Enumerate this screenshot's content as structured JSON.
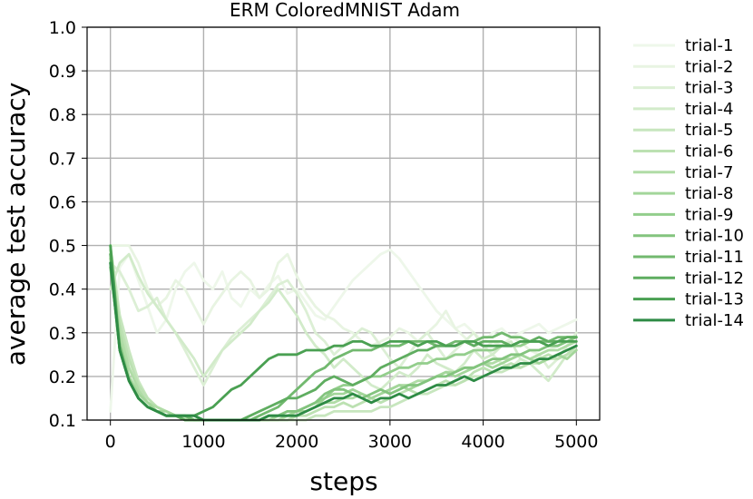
{
  "chart_data": {
    "type": "line",
    "title": "ERM ColoredMNIST Adam",
    "xlabel": "steps",
    "ylabel": "average test accuracy",
    "xlim": [
      -250,
      5250
    ],
    "ylim": [
      0.1,
      1.0
    ],
    "xticks": [
      0,
      1000,
      2000,
      3000,
      4000,
      5000
    ],
    "xtick_labels": [
      "0",
      "1000",
      "2000",
      "3000",
      "4000",
      "5000"
    ],
    "yticks": [
      0.1,
      0.2,
      0.3,
      0.4,
      0.5,
      0.6,
      0.7,
      0.8,
      0.9,
      1.0
    ],
    "ytick_labels": [
      "0.1",
      "0.2",
      "0.3",
      "0.4",
      "0.5",
      "0.6",
      "0.7",
      "0.8",
      "0.9",
      "1.0"
    ],
    "grid": true,
    "legend_position": "outside-right",
    "x": [
      0,
      100,
      200,
      300,
      400,
      500,
      600,
      700,
      800,
      900,
      1000,
      1100,
      1200,
      1300,
      1400,
      1500,
      1600,
      1700,
      1800,
      1900,
      2000,
      2100,
      2200,
      2300,
      2400,
      2500,
      2600,
      2700,
      2800,
      2900,
      3000,
      3100,
      3200,
      3300,
      3400,
      3500,
      3600,
      3700,
      3800,
      3900,
      4000,
      4100,
      4200,
      4300,
      4400,
      4500,
      4600,
      4700,
      4800,
      4900,
      5000
    ],
    "series": [
      {
        "name": "trial-1",
        "color": "#eef7ea",
        "opacity": 1.0,
        "values": [
          0.12,
          0.45,
          0.48,
          0.42,
          0.36,
          0.3,
          0.33,
          0.4,
          0.44,
          0.46,
          0.42,
          0.4,
          0.44,
          0.38,
          0.36,
          0.4,
          0.38,
          0.41,
          0.43,
          0.39,
          0.4,
          0.37,
          0.34,
          0.33,
          0.36,
          0.39,
          0.42,
          0.44,
          0.46,
          0.48,
          0.49,
          0.47,
          0.44,
          0.41,
          0.38,
          0.35,
          0.33,
          0.31,
          0.32,
          0.3,
          0.28,
          0.3,
          0.31,
          0.29,
          0.3,
          0.31,
          0.32,
          0.3,
          0.31,
          0.32,
          0.33
        ]
      },
      {
        "name": "trial-2",
        "color": "#e8f4e2",
        "opacity": 1.0,
        "values": [
          0.5,
          0.5,
          0.5,
          0.46,
          0.4,
          0.36,
          0.38,
          0.42,
          0.4,
          0.36,
          0.32,
          0.36,
          0.39,
          0.42,
          0.44,
          0.42,
          0.38,
          0.4,
          0.46,
          0.48,
          0.43,
          0.39,
          0.36,
          0.34,
          0.33,
          0.31,
          0.3,
          0.28,
          0.27,
          0.28,
          0.29,
          0.31,
          0.3,
          0.28,
          0.3,
          0.32,
          0.35,
          0.31,
          0.29,
          0.27,
          0.26,
          0.28,
          0.27,
          0.29,
          0.28,
          0.26,
          0.25,
          0.26,
          0.27,
          0.28,
          0.29
        ]
      },
      {
        "name": "trial-3",
        "color": "#dcefd5",
        "opacity": 1.0,
        "values": [
          0.46,
          0.44,
          0.4,
          0.35,
          0.36,
          0.38,
          0.33,
          0.3,
          0.26,
          0.22,
          0.18,
          0.22,
          0.26,
          0.29,
          0.31,
          0.33,
          0.35,
          0.38,
          0.41,
          0.42,
          0.39,
          0.35,
          0.3,
          0.28,
          0.25,
          0.27,
          0.29,
          0.31,
          0.3,
          0.27,
          0.24,
          0.22,
          0.25,
          0.28,
          0.3,
          0.27,
          0.24,
          0.26,
          0.28,
          0.3,
          0.27,
          0.25,
          0.23,
          0.22,
          0.24,
          0.23,
          0.25,
          0.22,
          0.24,
          0.27,
          0.3
        ]
      },
      {
        "name": "trial-4",
        "color": "#d2ebca",
        "opacity": 1.0,
        "values": [
          0.4,
          0.46,
          0.48,
          0.43,
          0.39,
          0.36,
          0.33,
          0.3,
          0.27,
          0.24,
          0.2,
          0.23,
          0.26,
          0.28,
          0.3,
          0.32,
          0.35,
          0.37,
          0.4,
          0.37,
          0.34,
          0.3,
          0.27,
          0.25,
          0.22,
          0.24,
          0.22,
          0.2,
          0.18,
          0.17,
          0.19,
          0.21,
          0.2,
          0.22,
          0.25,
          0.23,
          0.22,
          0.21,
          0.23,
          0.26,
          0.24,
          0.25,
          0.27,
          0.28,
          0.24,
          0.23,
          0.21,
          0.19,
          0.22,
          0.25,
          0.27
        ]
      },
      {
        "name": "trial-5",
        "color": "#c7e6be",
        "opacity": 1.0,
        "values": [
          0.5,
          0.34,
          0.26,
          0.19,
          0.15,
          0.13,
          0.12,
          0.11,
          0.105,
          0.1,
          0.1,
          0.1,
          0.1,
          0.1,
          0.1,
          0.1,
          0.1,
          0.1,
          0.1,
          0.1,
          0.1,
          0.1,
          0.11,
          0.11,
          0.12,
          0.12,
          0.12,
          0.12,
          0.12,
          0.13,
          0.13,
          0.14,
          0.15,
          0.16,
          0.16,
          0.17,
          0.18,
          0.18,
          0.19,
          0.2,
          0.2,
          0.21,
          0.21,
          0.22,
          0.22,
          0.23,
          0.23,
          0.24,
          0.24,
          0.25,
          0.26
        ]
      },
      {
        "name": "trial-6",
        "color": "#bce1b2",
        "opacity": 1.0,
        "values": [
          0.48,
          0.32,
          0.24,
          0.18,
          0.15,
          0.13,
          0.12,
          0.11,
          0.11,
          0.1,
          0.1,
          0.1,
          0.1,
          0.1,
          0.1,
          0.1,
          0.1,
          0.1,
          0.1,
          0.1,
          0.11,
          0.11,
          0.12,
          0.13,
          0.13,
          0.14,
          0.13,
          0.14,
          0.15,
          0.14,
          0.15,
          0.16,
          0.17,
          0.16,
          0.17,
          0.18,
          0.19,
          0.18,
          0.19,
          0.21,
          0.22,
          0.21,
          0.22,
          0.23,
          0.22,
          0.23,
          0.24,
          0.25,
          0.24,
          0.25,
          0.27
        ]
      },
      {
        "name": "trial-7",
        "color": "#b0dca6",
        "opacity": 1.0,
        "values": [
          0.49,
          0.3,
          0.22,
          0.17,
          0.14,
          0.13,
          0.12,
          0.11,
          0.11,
          0.11,
          0.1,
          0.1,
          0.1,
          0.1,
          0.1,
          0.1,
          0.1,
          0.1,
          0.1,
          0.11,
          0.11,
          0.12,
          0.13,
          0.14,
          0.14,
          0.15,
          0.15,
          0.16,
          0.15,
          0.16,
          0.17,
          0.18,
          0.18,
          0.19,
          0.19,
          0.2,
          0.21,
          0.21,
          0.22,
          0.22,
          0.23,
          0.23,
          0.24,
          0.24,
          0.25,
          0.24,
          0.25,
          0.26,
          0.26,
          0.27,
          0.28
        ]
      },
      {
        "name": "trial-8",
        "color": "#a3d69a",
        "opacity": 1.0,
        "values": [
          0.47,
          0.28,
          0.2,
          0.16,
          0.14,
          0.12,
          0.12,
          0.11,
          0.11,
          0.1,
          0.1,
          0.1,
          0.1,
          0.1,
          0.1,
          0.1,
          0.1,
          0.1,
          0.11,
          0.11,
          0.12,
          0.12,
          0.13,
          0.15,
          0.16,
          0.16,
          0.17,
          0.16,
          0.15,
          0.16,
          0.17,
          0.18,
          0.17,
          0.18,
          0.19,
          0.2,
          0.21,
          0.2,
          0.21,
          0.22,
          0.23,
          0.22,
          0.23,
          0.24,
          0.25,
          0.24,
          0.23,
          0.24,
          0.25,
          0.24,
          0.26
        ]
      },
      {
        "name": "trial-9",
        "color": "#93ce8c",
        "opacity": 1.0,
        "values": [
          0.5,
          0.27,
          0.19,
          0.15,
          0.13,
          0.12,
          0.11,
          0.11,
          0.11,
          0.1,
          0.1,
          0.1,
          0.1,
          0.1,
          0.1,
          0.1,
          0.1,
          0.11,
          0.11,
          0.12,
          0.12,
          0.13,
          0.14,
          0.15,
          0.17,
          0.18,
          0.18,
          0.19,
          0.2,
          0.2,
          0.21,
          0.22,
          0.22,
          0.23,
          0.23,
          0.24,
          0.24,
          0.25,
          0.25,
          0.26,
          0.26,
          0.26,
          0.27,
          0.27,
          0.27,
          0.28,
          0.28,
          0.28,
          0.28,
          0.29,
          0.29
        ]
      },
      {
        "name": "trial-10",
        "color": "#83c47e",
        "opacity": 1.0,
        "values": [
          0.46,
          0.26,
          0.19,
          0.15,
          0.13,
          0.12,
          0.11,
          0.11,
          0.1,
          0.1,
          0.1,
          0.1,
          0.1,
          0.1,
          0.1,
          0.1,
          0.1,
          0.11,
          0.11,
          0.12,
          0.12,
          0.13,
          0.14,
          0.16,
          0.17,
          0.17,
          0.16,
          0.15,
          0.16,
          0.17,
          0.16,
          0.17,
          0.18,
          0.18,
          0.19,
          0.2,
          0.2,
          0.21,
          0.22,
          0.22,
          0.23,
          0.24,
          0.24,
          0.25,
          0.25,
          0.26,
          0.26,
          0.27,
          0.27,
          0.28,
          0.29
        ]
      },
      {
        "name": "trial-11",
        "color": "#72b96f",
        "opacity": 1.0,
        "values": [
          0.45,
          0.27,
          0.19,
          0.15,
          0.13,
          0.12,
          0.11,
          0.11,
          0.11,
          0.1,
          0.1,
          0.1,
          0.1,
          0.1,
          0.1,
          0.1,
          0.11,
          0.12,
          0.13,
          0.15,
          0.17,
          0.19,
          0.21,
          0.22,
          0.24,
          0.25,
          0.26,
          0.26,
          0.26,
          0.27,
          0.27,
          0.27,
          0.28,
          0.28,
          0.28,
          0.27,
          0.27,
          0.28,
          0.28,
          0.28,
          0.29,
          0.29,
          0.3,
          0.29,
          0.29,
          0.28,
          0.28,
          0.28,
          0.29,
          0.29,
          0.29
        ]
      },
      {
        "name": "trial-12",
        "color": "#5fad60",
        "opacity": 1.0,
        "values": [
          0.48,
          0.26,
          0.19,
          0.15,
          0.13,
          0.12,
          0.11,
          0.11,
          0.1,
          0.1,
          0.1,
          0.1,
          0.1,
          0.1,
          0.1,
          0.11,
          0.12,
          0.13,
          0.14,
          0.15,
          0.15,
          0.16,
          0.17,
          0.19,
          0.2,
          0.19,
          0.18,
          0.19,
          0.2,
          0.22,
          0.23,
          0.24,
          0.25,
          0.26,
          0.26,
          0.27,
          0.27,
          0.27,
          0.28,
          0.27,
          0.28,
          0.28,
          0.28,
          0.27,
          0.28,
          0.28,
          0.29,
          0.28,
          0.28,
          0.29,
          0.29
        ]
      },
      {
        "name": "trial-13",
        "color": "#4aa052",
        "opacity": 1.0,
        "values": [
          0.5,
          0.26,
          0.19,
          0.15,
          0.13,
          0.12,
          0.11,
          0.11,
          0.11,
          0.11,
          0.12,
          0.13,
          0.15,
          0.17,
          0.18,
          0.2,
          0.22,
          0.24,
          0.25,
          0.25,
          0.25,
          0.26,
          0.26,
          0.26,
          0.27,
          0.27,
          0.28,
          0.28,
          0.27,
          0.27,
          0.28,
          0.28,
          0.28,
          0.27,
          0.28,
          0.28,
          0.27,
          0.27,
          0.28,
          0.28,
          0.27,
          0.27,
          0.27,
          0.27,
          0.28,
          0.28,
          0.28,
          0.27,
          0.28,
          0.28,
          0.28
        ]
      },
      {
        "name": "trial-14",
        "color": "#2e8b45",
        "opacity": 1.0,
        "values": [
          0.46,
          0.26,
          0.19,
          0.15,
          0.13,
          0.12,
          0.11,
          0.11,
          0.11,
          0.11,
          0.1,
          0.1,
          0.1,
          0.1,
          0.1,
          0.1,
          0.1,
          0.11,
          0.11,
          0.11,
          0.11,
          0.12,
          0.13,
          0.14,
          0.15,
          0.15,
          0.16,
          0.15,
          0.14,
          0.15,
          0.15,
          0.16,
          0.15,
          0.16,
          0.17,
          0.18,
          0.18,
          0.19,
          0.2,
          0.19,
          0.2,
          0.21,
          0.22,
          0.22,
          0.23,
          0.23,
          0.24,
          0.24,
          0.25,
          0.26,
          0.27
        ]
      }
    ]
  }
}
